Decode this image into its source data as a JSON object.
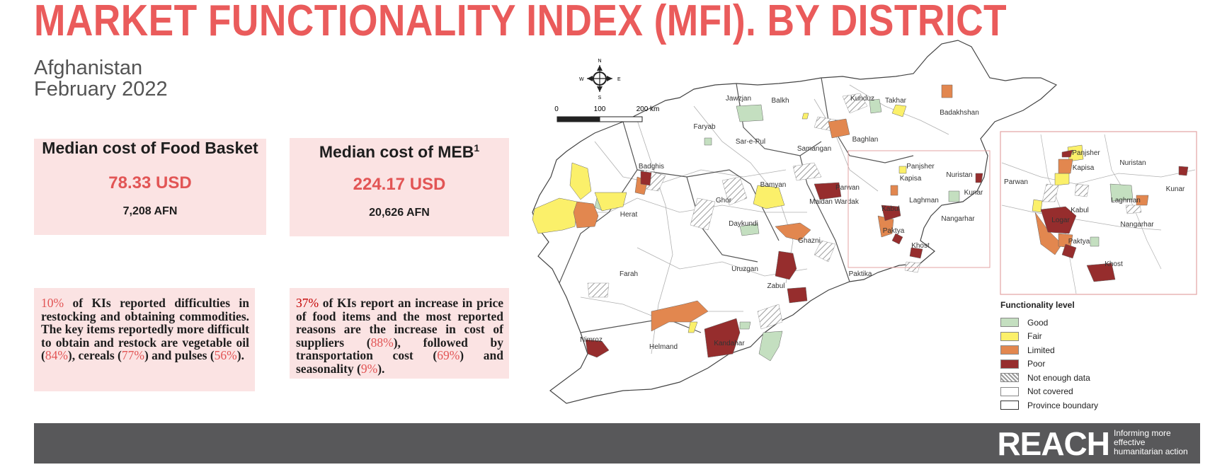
{
  "title": "MARKET FUNCTIONALITY INDEX (MFI). BY DISTRICT",
  "country": "Afghanistan",
  "date": "February 2022",
  "food_basket": {
    "label": "Median cost of Food Basket",
    "usd": "78.33 USD",
    "afn": "7,208 AFN"
  },
  "meb": {
    "label": "Median cost of MEB",
    "sup": "1",
    "usd": "224.17 USD",
    "afn": "20,626 AFN"
  },
  "note_restock": {
    "p1": "10%",
    "t1": " of KIs reported difficulties in restocking and obtaining commodities. The key items reportedly more difficult to obtain and restock are vegetable oil (",
    "p2": "84%",
    "t2": "), cereals (",
    "p3": "77%",
    "t3": ") and pulses (",
    "p4": "56%",
    "t4": ")."
  },
  "note_price": {
    "p1": "37%",
    "t1": " of KIs report an increase in price of food items and the most reported reasons are the increase in cost of suppliers (",
    "p2": "88%",
    "t2": "), followed by transportation cost (",
    "p3": "69%",
    "t3": ") and seasonality (",
    "p4": "9%",
    "t4": ")."
  },
  "map": {
    "compass": {
      "n": "N",
      "s": "S",
      "e": "E",
      "w": "W"
    },
    "scale": {
      "t0": "0",
      "t1": "100",
      "t2": "200 km"
    },
    "provinces": [
      "Jawzjan",
      "Balkh",
      "Kunduz",
      "Takhar",
      "Badakhshan",
      "Faryab",
      "Sar-e-Pul",
      "Samangan",
      "Baghlan",
      "Badghis",
      "Panjsher",
      "Nuristan",
      "Parwan",
      "Kapisa",
      "Kunar",
      "Herat",
      "Bamyan",
      "Maidan Wardak",
      "Laghman",
      "Ghor",
      "Kabul",
      "Nangarhar",
      "Daykundi",
      "Paktya",
      "Ghazni",
      "Khost",
      "Farah",
      "Uruzgan",
      "Paktika",
      "Zabul",
      "Nimroz",
      "Helmand",
      "Kandahar"
    ],
    "inset_provinces": [
      "Panjsher",
      "Nuristan",
      "Kapisa",
      "Parwan",
      "Kunar",
      "Laghman",
      "Kabul",
      "Logar",
      "Nangarhar",
      "Paktya",
      "Khost"
    ],
    "colors": {
      "good": "#c4dfc0",
      "fair": "#fbf06a",
      "limited": "#e2874f",
      "poor": "#962d2d",
      "none": "#ffffff"
    }
  },
  "legend": {
    "title": "Functionality level",
    "items": [
      {
        "label": "Good",
        "color": "#c4dfc0"
      },
      {
        "label": "Fair",
        "color": "#fbf06a"
      },
      {
        "label": "Limited",
        "color": "#e2874f"
      },
      {
        "label": "Poor",
        "color": "#962d2d"
      },
      {
        "label": "Not enough data",
        "color": "hatch"
      },
      {
        "label": "Not covered",
        "color": "#ffffff"
      },
      {
        "label": "Province boundary",
        "color": "outline"
      }
    ]
  },
  "footer": {
    "brand": "REACH",
    "tagline": "Informing more effective humanitarian action"
  }
}
